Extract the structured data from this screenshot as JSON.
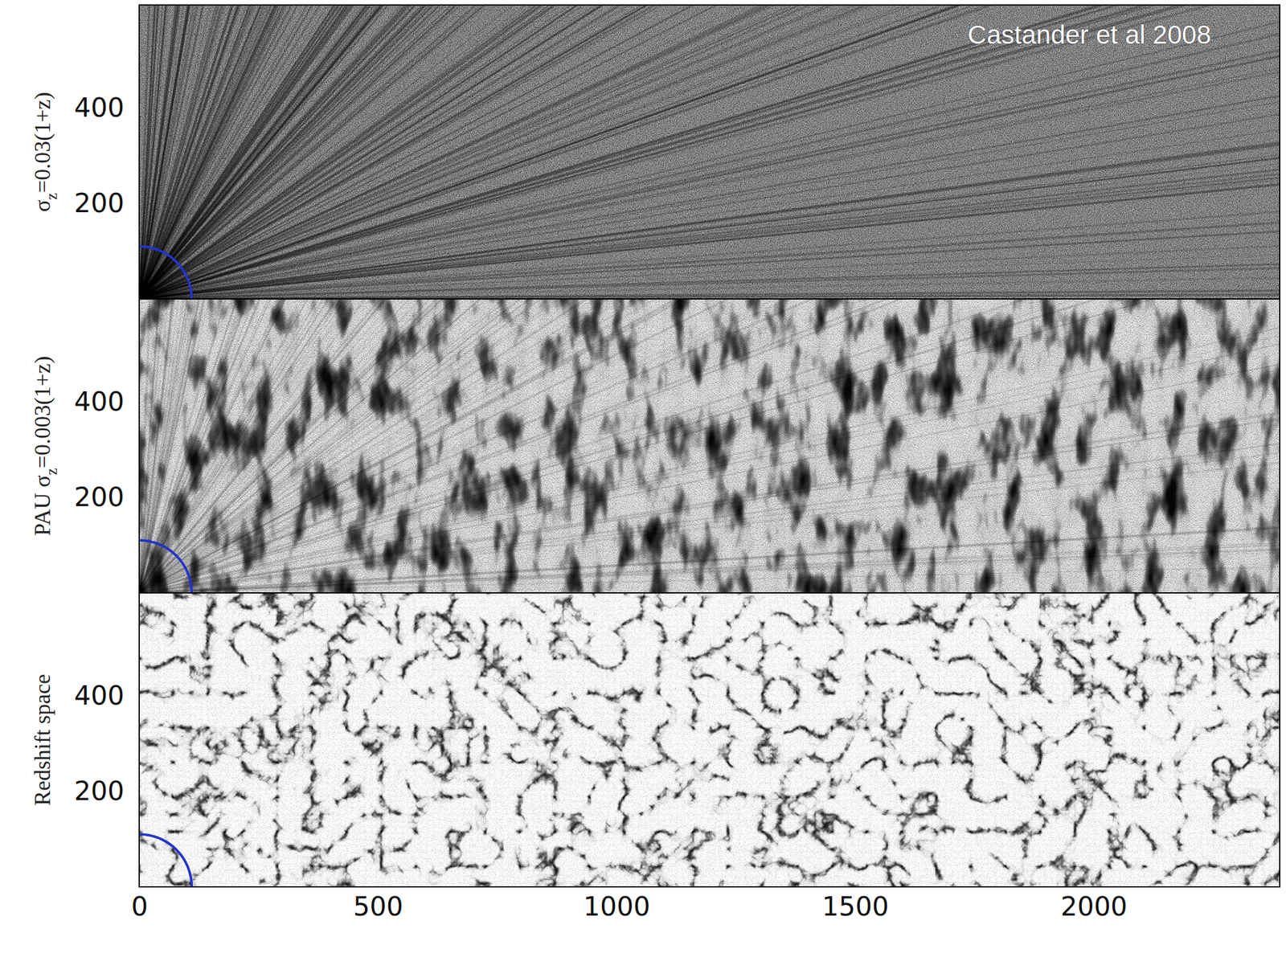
{
  "chart_data": [
    {
      "type": "scatter",
      "ylabel": "σz=0.03(1+z)",
      "annotation": "Castander et al 2008",
      "xlim": [
        0,
        2390
      ],
      "ylim": [
        0,
        615
      ],
      "yticks": [
        200,
        400
      ],
      "tick_labels": "y",
      "arc_radius": 110,
      "color": "#2233cc"
    },
    {
      "type": "scatter",
      "ylabel": "PAU σz=0.003(1+z)",
      "xlim": [
        0,
        2390
      ],
      "ylim": [
        0,
        615
      ],
      "yticks": [
        200,
        400
      ],
      "tick_labels": "y",
      "arc_radius": 110,
      "color": "#2233cc"
    },
    {
      "type": "scatter",
      "ylabel": "Redshift space",
      "xlim": [
        0,
        2390
      ],
      "ylim": [
        0,
        615
      ],
      "xticks": [
        0,
        500,
        1000,
        1500,
        2000
      ],
      "yticks": [
        200,
        400
      ],
      "arc_radius": 110,
      "color": "#2233cc"
    }
  ]
}
